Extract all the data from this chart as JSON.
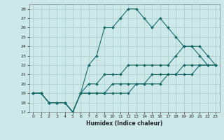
{
  "title": "",
  "xlabel": "Humidex (Indice chaleur)",
  "bg_color": "#cce8e8",
  "grid_color": "#aacccc",
  "line_color": "#1a6b6b",
  "xlim": [
    -0.5,
    23.5
  ],
  "ylim": [
    17,
    28.5
  ],
  "xticks": [
    0,
    1,
    2,
    3,
    4,
    5,
    6,
    7,
    8,
    9,
    10,
    11,
    12,
    13,
    14,
    15,
    16,
    17,
    18,
    19,
    20,
    21,
    22,
    23
  ],
  "yticks": [
    17,
    18,
    19,
    20,
    21,
    22,
    23,
    24,
    25,
    26,
    27,
    28
  ],
  "series": [
    {
      "x": [
        0,
        1,
        2,
        3,
        4,
        5,
        6,
        7,
        8,
        9,
        10,
        11,
        12,
        13,
        14,
        15,
        16,
        17,
        18,
        19,
        20,
        21,
        22
      ],
      "y": [
        19,
        19,
        18,
        18,
        18,
        17,
        19,
        22,
        23,
        26,
        26,
        27,
        28,
        28,
        27,
        26,
        27,
        26,
        25,
        24,
        24,
        23,
        22
      ]
    },
    {
      "x": [
        0,
        1,
        2,
        3,
        4,
        5,
        6,
        7,
        8,
        9,
        10,
        11,
        12,
        13,
        14,
        15,
        16,
        17,
        18,
        19,
        20,
        21,
        22,
        23
      ],
      "y": [
        19,
        19,
        18,
        18,
        18,
        17,
        19,
        20,
        20,
        21,
        21,
        21,
        22,
        22,
        22,
        22,
        22,
        22,
        23,
        24,
        24,
        24,
        23,
        22
      ]
    },
    {
      "x": [
        0,
        1,
        2,
        3,
        4,
        5,
        6,
        7,
        8,
        9,
        10,
        11,
        12,
        13,
        14,
        15,
        16,
        17,
        18,
        19,
        20,
        21,
        22,
        23
      ],
      "y": [
        19,
        19,
        18,
        18,
        18,
        17,
        19,
        19,
        19,
        19,
        20,
        20,
        20,
        20,
        20,
        21,
        21,
        21,
        21,
        22,
        22,
        22,
        22,
        22
      ]
    },
    {
      "x": [
        0,
        1,
        2,
        3,
        4,
        5,
        6,
        7,
        8,
        9,
        10,
        11,
        12,
        13,
        14,
        15,
        16,
        17,
        18,
        19,
        20,
        21,
        22,
        23
      ],
      "y": [
        19,
        19,
        18,
        18,
        18,
        17,
        19,
        19,
        19,
        19,
        19,
        19,
        19,
        20,
        20,
        20,
        20,
        21,
        21,
        21,
        21,
        22,
        22,
        22
      ]
    }
  ]
}
